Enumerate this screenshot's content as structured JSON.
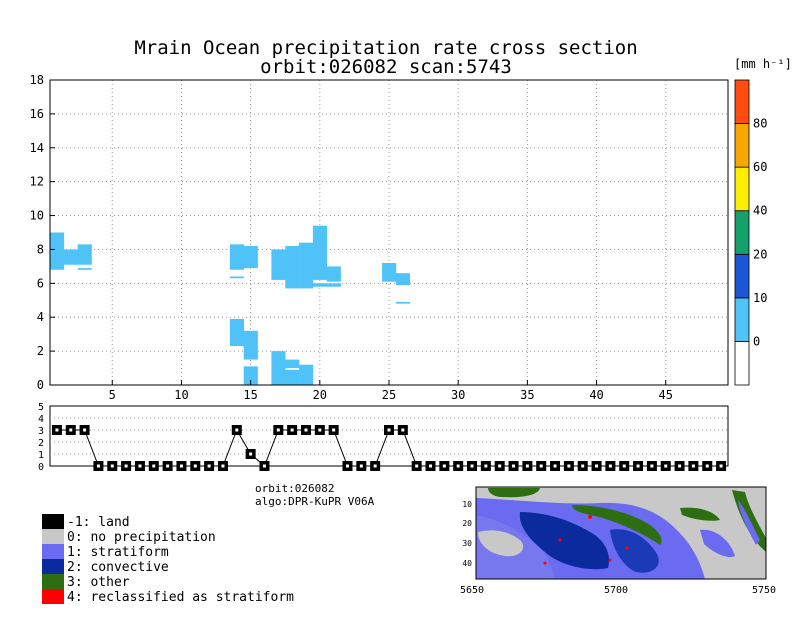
{
  "title": {
    "line1": "Mrain Ocean precipitation rate cross section",
    "line2": "orbit:026082    scan:5743"
  },
  "colorbar": {
    "unit": "[mm h⁻¹]",
    "labels": [
      "0",
      "10",
      "20",
      "40",
      "60",
      "80"
    ],
    "colors": [
      "#ffffff",
      "#4fc3f7",
      "#1a56d6",
      "#16a06a",
      "#ffee00",
      "#f7a800",
      "#ff4d12"
    ]
  },
  "info": {
    "orbit": "orbit:026082",
    "algo": "algo:DPR-KuPR V06A"
  },
  "legend": [
    {
      "label": "-1: land",
      "color": "#000000"
    },
    {
      "label": "0: no precipitation",
      "color": "#c8c8c8"
    },
    {
      "label": "1: stratiform",
      "color": "#6b6bf2"
    },
    {
      "label": "2: convective",
      "color": "#0a2a9e"
    },
    {
      "label": "3: other",
      "color": "#2e6e12"
    },
    {
      "label": "4: reclassified as stratiform",
      "color": "#ff0000"
    }
  ],
  "map": {
    "xticks": [
      "5650",
      "5700",
      "5750"
    ],
    "yticks": [
      "10",
      "20",
      "30",
      "40"
    ]
  },
  "chart_data": [
    {
      "type": "heatmap",
      "title": "Mrain Ocean precipitation rate cross section",
      "xlabel": "",
      "ylabel": "",
      "xlim": [
        0.5,
        49.5
      ],
      "ylim": [
        0,
        18
      ],
      "xticks": [
        5,
        10,
        15,
        20,
        25,
        30,
        35,
        40,
        45
      ],
      "yticks": [
        0,
        2,
        4,
        6,
        8,
        10,
        12,
        14,
        16,
        18
      ],
      "grid": true,
      "cells": [
        {
          "x": 1,
          "y0": 6.8,
          "y1": 9.0
        },
        {
          "x": 2,
          "y0": 7.1,
          "y1": 8.0
        },
        {
          "x": 3,
          "y0": 7.1,
          "y1": 8.3
        },
        {
          "x": 3,
          "y0": 6.8,
          "y1": 6.9
        },
        {
          "x": 14,
          "y0": 6.8,
          "y1": 8.3
        },
        {
          "x": 14,
          "y0": 6.3,
          "y1": 6.4
        },
        {
          "x": 14,
          "y0": 2.3,
          "y1": 3.9
        },
        {
          "x": 15,
          "y0": 6.9,
          "y1": 8.2
        },
        {
          "x": 15,
          "y0": 1.5,
          "y1": 3.2
        },
        {
          "x": 15,
          "y0": 0.0,
          "y1": 1.1
        },
        {
          "x": 17,
          "y0": 6.2,
          "y1": 8.0
        },
        {
          "x": 17,
          "y0": 0.0,
          "y1": 2.0
        },
        {
          "x": 18,
          "y0": 5.7,
          "y1": 8.2
        },
        {
          "x": 18,
          "y0": 1.0,
          "y1": 1.5
        },
        {
          "x": 18,
          "y0": 0.0,
          "y1": 0.9
        },
        {
          "x": 19,
          "y0": 5.7,
          "y1": 8.4
        },
        {
          "x": 19,
          "y0": 0.0,
          "y1": 1.2
        },
        {
          "x": 20,
          "y0": 6.2,
          "y1": 9.4
        },
        {
          "x": 20,
          "y0": 5.8,
          "y1": 6.0
        },
        {
          "x": 21,
          "y0": 6.1,
          "y1": 7.0
        },
        {
          "x": 21,
          "y0": 5.8,
          "y1": 6.0
        },
        {
          "x": 25,
          "y0": 6.1,
          "y1": 7.2
        },
        {
          "x": 26,
          "y0": 5.9,
          "y1": 6.6
        },
        {
          "x": 26,
          "y0": 4.8,
          "y1": 4.9
        }
      ],
      "cell_value_range": "0-10 mm h-1"
    },
    {
      "type": "line",
      "title": "",
      "xlim": [
        0.5,
        49.5
      ],
      "ylim": [
        0,
        5
      ],
      "yticks": [
        0,
        1,
        2,
        3,
        4,
        5
      ],
      "x": [
        1,
        2,
        3,
        4,
        5,
        6,
        7,
        8,
        9,
        10,
        11,
        12,
        13,
        14,
        15,
        16,
        17,
        18,
        19,
        20,
        21,
        22,
        23,
        24,
        25,
        26,
        27,
        28,
        29,
        30,
        31,
        32,
        33,
        34,
        35,
        36,
        37,
        38,
        39,
        40,
        41,
        42,
        43,
        44,
        45,
        46,
        47,
        48,
        49
      ],
      "values": [
        3,
        3,
        3,
        0,
        0,
        0,
        0,
        0,
        0,
        0,
        0,
        0,
        0,
        3,
        1,
        0,
        3,
        3,
        3,
        3,
        3,
        0,
        0,
        0,
        3,
        3,
        0,
        0,
        0,
        0,
        0,
        0,
        0,
        0,
        0,
        0,
        0,
        0,
        0,
        0,
        0,
        0,
        0,
        0,
        0,
        0,
        0,
        0,
        0
      ]
    }
  ]
}
